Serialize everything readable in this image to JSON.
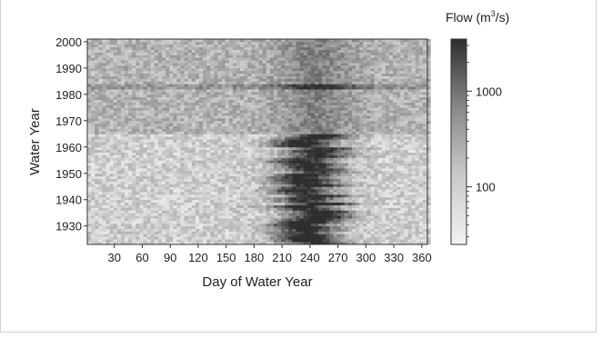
{
  "chart_data": {
    "type": "heatmap",
    "title": "",
    "xlabel": "Day of Water Year",
    "ylabel": "Water Year",
    "x_ticks": [
      30,
      60,
      90,
      120,
      150,
      180,
      210,
      240,
      270,
      300,
      330,
      360
    ],
    "y_ticks": [
      1930,
      1940,
      1950,
      1960,
      1970,
      1980,
      1990,
      2000
    ],
    "xlim": [
      1,
      366
    ],
    "ylim": [
      1923,
      2001
    ],
    "colorbar": {
      "label_prefix": "Flow (m",
      "label_sup": "3",
      "label_suffix": "/s)",
      "scale": "log",
      "range": [
        25,
        3500
      ],
      "ticks": [
        100,
        1000
      ],
      "tick_labels": [
        "100",
        "1000"
      ],
      "color_low": "#f2f2f2",
      "color_high": "#2e2e2e"
    },
    "periods": [
      {
        "years": [
          1923,
          1964
        ],
        "description": "high flows days ~200-280, peak ~day 240"
      },
      {
        "years": [
          1965,
          2001
        ],
        "description": "regulated, more uniform moderate flows"
      }
    ]
  }
}
